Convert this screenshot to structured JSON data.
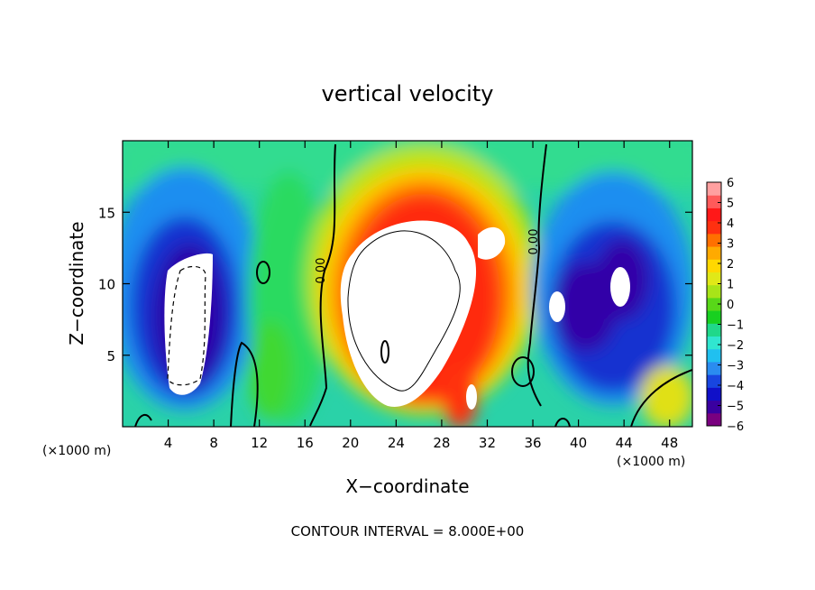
{
  "chart_data": {
    "type": "heatmap",
    "title": "vertical velocity",
    "xlabel": "X−coordinate",
    "ylabel": "Z−coordinate",
    "x_unit_left": "(×1000 m)",
    "x_unit_right": "(×1000 m)",
    "xlim": [
      0,
      50
    ],
    "ylim": [
      0,
      20
    ],
    "x_ticks": [
      4,
      8,
      12,
      16,
      20,
      24,
      28,
      32,
      36,
      40,
      44,
      48
    ],
    "y_ticks": [
      5,
      10,
      15
    ],
    "contour_labels": [
      "0.00",
      "0.00"
    ],
    "footer": "CONTOUR INTERVAL = 8.000E+00",
    "colorbar": {
      "min": -6,
      "max": 6,
      "tick_labels": [
        "6",
        "5",
        "4",
        "3",
        "2",
        "1",
        "0",
        "−1",
        "−2",
        "−3",
        "−4",
        "−5",
        "−6"
      ],
      "colors": [
        "#7a0080",
        "#3a00a0",
        "#1010c8",
        "#1846e0",
        "#2a8cf0",
        "#20c0f0",
        "#30e6d0",
        "#20d88a",
        "#18d020",
        "#58d818",
        "#a8e418",
        "#e0e818",
        "#ffd800",
        "#ffaa00",
        "#ff7000",
        "#ff3010",
        "#ff1818",
        "#ff5a5a",
        "#ffa0a0"
      ]
    },
    "features": [
      {
        "name": "updraft core",
        "x": 25,
        "z": 8,
        "value": ">6"
      },
      {
        "name": "left downdraft core",
        "x": 6,
        "z": 7,
        "value": "<-6"
      },
      {
        "name": "right downdraft core A",
        "x": 38,
        "z": 9,
        "value": "<-6"
      },
      {
        "name": "right downdraft core B",
        "x": 43.5,
        "z": 10,
        "value": "<-6"
      },
      {
        "name": "near-surface updraft",
        "x": 30.5,
        "z": 2,
        "value": ">6"
      }
    ]
  }
}
